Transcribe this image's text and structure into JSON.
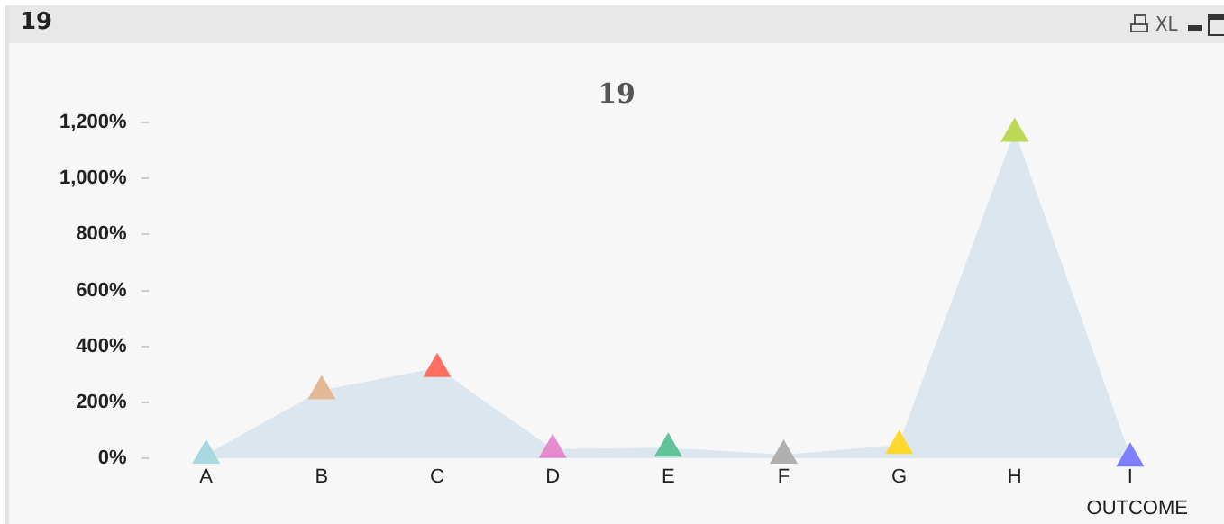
{
  "chart_data": {
    "type": "area",
    "title": "19",
    "xlabel": "OUTCOME",
    "annotations": [
      "19",
      "XL"
    ],
    "categories": [
      "A",
      "B",
      "C",
      "D",
      "E",
      "F",
      "G",
      "H",
      "I"
    ],
    "series": [
      {
        "color": "#dce6ef",
        "colors": [
          "#a8d8e0",
          "#e3b896",
          "#ff7060",
          "#e68bd0",
          "#62c39a",
          "#b0b0b0",
          "#ffd830",
          "#bcd855",
          "#8080ff"
        ],
        "values": [
          10,
          240,
          320,
          30,
          35,
          10,
          45,
          1160,
          0
        ]
      }
    ],
    "ylim": [
      0,
      1200
    ],
    "yticks": [
      {
        "value": 0,
        "label": "0%"
      },
      {
        "value": 200,
        "label": "200%"
      },
      {
        "value": 400,
        "label": "400%"
      },
      {
        "value": 600,
        "label": "600%"
      },
      {
        "value": 800,
        "label": "800%"
      },
      {
        "value": 1000,
        "label": "1,000%"
      },
      {
        "value": 1200,
        "label": "1,200%"
      }
    ],
    "marker": "triangle"
  }
}
